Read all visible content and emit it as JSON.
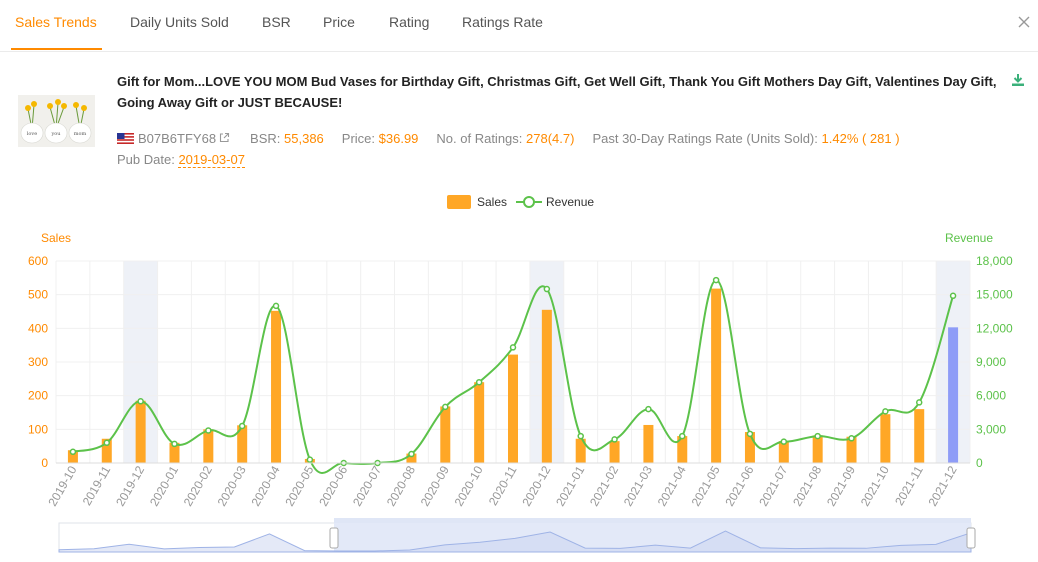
{
  "tabs": [
    {
      "label": "Sales Trends",
      "active": true
    },
    {
      "label": "Daily Units Sold",
      "active": false
    },
    {
      "label": "BSR",
      "active": false
    },
    {
      "label": "Price",
      "active": false
    },
    {
      "label": "Rating",
      "active": false
    },
    {
      "label": "Ratings Rate",
      "active": false
    }
  ],
  "icons": {
    "close": "close-icon",
    "download": "download-icon",
    "flag": "us-flag-icon",
    "external": "external-link-icon"
  },
  "product": {
    "title": "Gift for Mom...LOVE YOU MOM Bud Vases for Birthday Gift, Christmas Gift, Get Well Gift, Thank You Gift Mothers Day Gift, Valentines Day Gift, Going Away Gift or JUST BECAUSE!",
    "asin": "B07B6TFY68",
    "bsr_label": "BSR:",
    "bsr": "55,386",
    "price_label": "Price:",
    "price": "$36.99",
    "ratings_label": "No. of Ratings:",
    "ratings": "278(4.7)",
    "rate_label": "Past 30-Day Ratings Rate (Units Sold):",
    "rate": "1.42% ( 281 )",
    "pub_label": "Pub Date:",
    "pub_date": "2019-03-07",
    "thumb_text": [
      "love",
      "you",
      "mom"
    ]
  },
  "colors": {
    "accent": "#ff8a00",
    "sales": "#ffa726",
    "sales_current": "#8e9cf7",
    "revenue": "#5cc24a",
    "highlight": "#eef1f7"
  },
  "chart_data": {
    "type": "bar",
    "legend": [
      "Sales",
      "Revenue"
    ],
    "legend_position": "top-center",
    "ylabel_left": "Sales",
    "ylabel_right": "Revenue",
    "ylim_left": [
      0,
      600
    ],
    "ylim_right": [
      0,
      18000
    ],
    "yticks_left": [
      "0",
      "100",
      "200",
      "300",
      "400",
      "500",
      "600"
    ],
    "yticks_right": [
      "0",
      "3,000",
      "6,000",
      "9,000",
      "12,000",
      "15,000",
      "18,000"
    ],
    "categories": [
      "2019-10",
      "2019-11",
      "2019-12",
      "2020-01",
      "2020-02",
      "2020-03",
      "2020-04",
      "2020-05",
      "2020-06",
      "2020-07",
      "2020-08",
      "2020-09",
      "2020-10",
      "2020-11",
      "2020-12",
      "2021-01",
      "2021-02",
      "2021-03",
      "2021-04",
      "2021-05",
      "2021-06",
      "2021-07",
      "2021-08",
      "2021-09",
      "2021-10",
      "2021-11",
      "2021-12"
    ],
    "highlighted_categories": [
      "2019-12",
      "2020-12",
      "2021-12"
    ],
    "series": [
      {
        "name": "Sales",
        "type": "bar",
        "axis": "left",
        "values": [
          38,
          72,
          185,
          60,
          100,
          112,
          452,
          12,
          0,
          0,
          28,
          168,
          240,
          322,
          455,
          72,
          65,
          113,
          80,
          518,
          92,
          65,
          82,
          78,
          145,
          160,
          403
        ]
      },
      {
        "name": "Revenue",
        "type": "line",
        "axis": "right",
        "values": [
          1000,
          1800,
          5500,
          1700,
          2900,
          3300,
          14000,
          300,
          0,
          0,
          800,
          5000,
          7200,
          10300,
          15500,
          2400,
          2100,
          4800,
          2400,
          16300,
          2600,
          1900,
          2400,
          2200,
          4600,
          5400,
          14900
        ]
      }
    ],
    "grid": true
  }
}
